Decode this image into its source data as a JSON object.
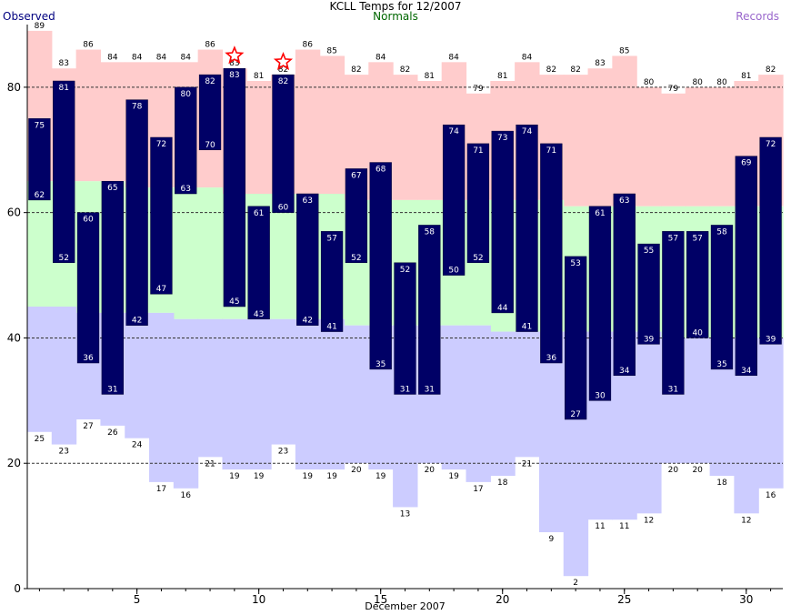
{
  "chart_data": {
    "type": "bar",
    "title": "KCLL Temps for 12/2007",
    "legend": [
      "Observed",
      "Normals",
      "Records"
    ],
    "xlabel": "December 2007",
    "ylabel": "",
    "xlim": [
      0.5,
      31.5
    ],
    "ylim": [
      0,
      90
    ],
    "xticks": [
      5,
      10,
      15,
      20,
      25,
      30
    ],
    "yticks": [
      0,
      20,
      40,
      60,
      80
    ],
    "grid": "dashed horizontal lines at 20, 40, 60, 80",
    "colors": {
      "observed": "#000066",
      "normals": "#ccffcc",
      "record_high_band": "#ffcccc",
      "record_low_band": "#ccccff",
      "gridline": "#333333",
      "star": "#ff0000",
      "observed_legend": "#000080",
      "normals_legend": "#006600",
      "records_legend": "#9966cc"
    },
    "days": [
      1,
      2,
      3,
      4,
      5,
      6,
      7,
      8,
      9,
      10,
      11,
      12,
      13,
      14,
      15,
      16,
      17,
      18,
      19,
      20,
      21,
      22,
      23,
      24,
      25,
      26,
      27,
      28,
      29,
      30,
      31
    ],
    "observed_high": [
      75,
      81,
      60,
      65,
      78,
      72,
      80,
      82,
      83,
      61,
      82,
      63,
      57,
      67,
      68,
      52,
      58,
      74,
      71,
      73,
      74,
      71,
      53,
      61,
      63,
      55,
      57,
      57,
      58,
      69,
      72
    ],
    "observed_low": [
      62,
      52,
      36,
      31,
      42,
      47,
      63,
      70,
      45,
      43,
      60,
      42,
      41,
      52,
      35,
      31,
      31,
      50,
      52,
      44,
      41,
      36,
      27,
      30,
      34,
      39,
      31,
      40,
      35,
      34,
      39
    ],
    "normal_high": [
      65,
      65,
      65,
      65,
      64,
      64,
      64,
      64,
      63,
      63,
      63,
      63,
      63,
      62,
      62,
      62,
      62,
      62,
      62,
      62,
      62,
      62,
      61,
      61,
      61,
      61,
      61,
      61,
      61,
      61,
      61
    ],
    "normal_low": [
      45,
      45,
      44,
      44,
      44,
      44,
      43,
      43,
      43,
      43,
      43,
      43,
      43,
      42,
      42,
      42,
      42,
      42,
      42,
      41,
      41,
      41,
      41,
      41,
      41,
      41,
      40,
      40,
      40,
      40,
      40
    ],
    "record_high": [
      89,
      83,
      86,
      84,
      84,
      84,
      84,
      86,
      83,
      81,
      82,
      86,
      85,
      82,
      84,
      82,
      81,
      84,
      79,
      81,
      84,
      82,
      82,
      83,
      85,
      80,
      79,
      80,
      80,
      81,
      82
    ],
    "record_low": [
      25,
      23,
      27,
      26,
      24,
      17,
      16,
      21,
      19,
      19,
      23,
      19,
      19,
      20,
      19,
      13,
      20,
      19,
      17,
      18,
      21,
      9,
      2,
      11,
      11,
      12,
      20,
      20,
      18,
      12,
      16
    ],
    "record_high_set_days": [
      9,
      11
    ]
  }
}
